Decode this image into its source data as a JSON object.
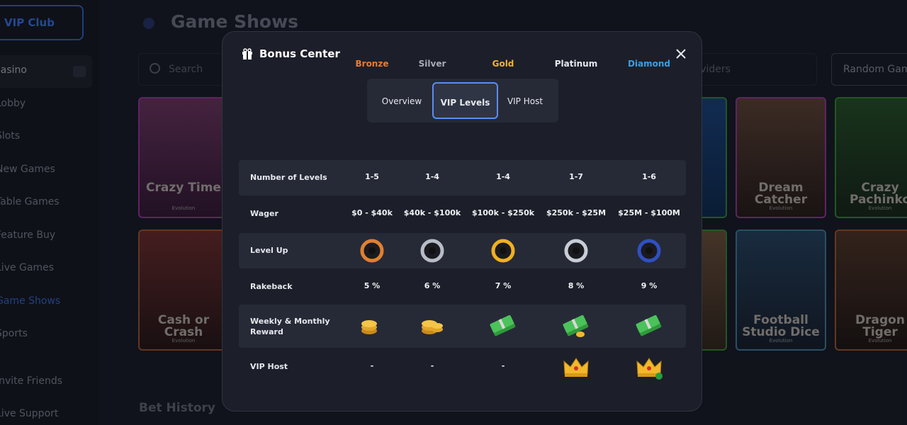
{
  "sidebar": {
    "vip_button": "VIP Club",
    "items": [
      "Casino",
      "Lobby",
      "Slots",
      "New Games",
      "Table Games",
      "Feature Buy",
      "Live Games",
      "Game Shows",
      "Sports",
      "Invite Friends",
      "Live Support"
    ]
  },
  "header": {
    "title": "Game Shows",
    "search_placeholder": "Search",
    "providers": "Providers",
    "random_button": "Random Games"
  },
  "games": [
    {
      "title": "Crazy Time",
      "provider": "Evolution"
    },
    {
      "title": "Dream Catcher",
      "provider": "Evolution"
    },
    {
      "title": "Crazy Pachinko",
      "provider": "Evolution"
    },
    {
      "title": "Cash or Crash",
      "provider": "Evolution"
    },
    {
      "title": "Football Studio Dice",
      "provider": "Evolution"
    },
    {
      "title": "Dragon Tiger",
      "provider": "Evolution"
    }
  ],
  "section": "Bet History",
  "modal": {
    "title": "Bonus Center",
    "tabs": [
      "Overview",
      "VIP Levels",
      "VIP Host"
    ],
    "levels": [
      "Bronze",
      "Silver",
      "Gold",
      "Platinum",
      "Diamond"
    ],
    "rows": [
      {
        "label": "Number of Levels",
        "cells": [
          "1-5",
          "1-4",
          "1-4",
          "1-7",
          "1-6"
        ]
      },
      {
        "label": "Wager",
        "cells": [
          "$0 - $40k",
          "$40k - $100k",
          "$100k - $250k",
          "$250k - $25M",
          "$25M - $100M"
        ]
      },
      {
        "label": "Level Up"
      },
      {
        "label": "Rakeback",
        "cells": [
          "5 %",
          "6 %",
          "7 %",
          "8 %",
          "9 %"
        ]
      },
      {
        "label": "Weekly & Monthly Reward"
      },
      {
        "label": "VIP Host",
        "cells": [
          "-",
          "-",
          "-"
        ]
      }
    ]
  }
}
